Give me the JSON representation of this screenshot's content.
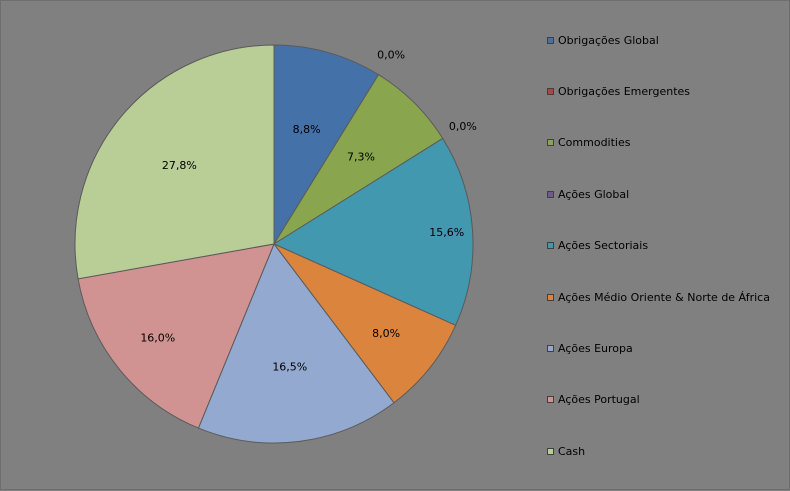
{
  "chart_data": {
    "type": "pie",
    "categories": [
      "Obrigações Global",
      "Obrigações Emergentes",
      "Commodities",
      "Ações Global",
      "Ações Sectoriais",
      "Ações Médio Oriente & Norte de África",
      "Ações Europa",
      "Ações Portugal",
      "Cash"
    ],
    "values": [
      8.8,
      0.0,
      7.3,
      0.0,
      15.6,
      8.0,
      16.5,
      16.0,
      27.8
    ],
    "value_labels": [
      "8,8%",
      "0,0%",
      "7,3%",
      "0,0%",
      "15,6%",
      "8,0%",
      "16,5%",
      "16,0%",
      "27,8%"
    ],
    "colors": [
      "#4571A9",
      "#AA4643",
      "#89A54E",
      "#71588F",
      "#4198AF",
      "#DB843D",
      "#93A9CF",
      "#D19392",
      "#B9CD96"
    ],
    "legend_position": "right",
    "start": "top, clockwise"
  }
}
